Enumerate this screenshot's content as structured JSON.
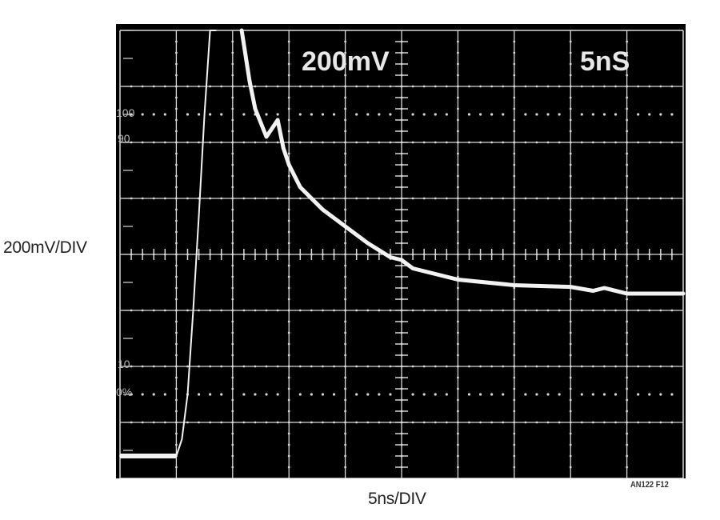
{
  "chart_data": {
    "type": "line",
    "title": "",
    "xlabel": "5ns/DIV",
    "ylabel": "200mV/DIV",
    "figure_id": "AN122 F12",
    "screen_annotations": {
      "volts_per_div": "200mV",
      "time_per_div": "5nS"
    },
    "graticule": {
      "x_divisions": 10,
      "y_divisions": 8,
      "grid": true,
      "markers": [
        "100",
        "90",
        "10",
        "0%"
      ]
    },
    "xlim": [
      0,
      50
    ],
    "x_unit": "ns",
    "y_unit": "divisions",
    "ylim": [
      0,
      8
    ],
    "series": [
      {
        "name": "Rising edge trace (thin)",
        "x": [
          0,
          5,
          5.5,
          6,
          6.5,
          7,
          7.5,
          8,
          8.5
        ],
        "values": [
          0.4,
          0.4,
          0.7,
          1.5,
          3.0,
          4.7,
          6.5,
          8.0,
          8.0
        ]
      },
      {
        "name": "Decay trace (thick)",
        "x": [
          10.8,
          11.5,
          12,
          13,
          14,
          14.5,
          15,
          16,
          18,
          20,
          22,
          24,
          25,
          26,
          30,
          35,
          40,
          42,
          43,
          45,
          50
        ],
        "values": [
          8.0,
          7.1,
          6.6,
          6.1,
          6.4,
          5.9,
          5.6,
          5.2,
          4.8,
          4.5,
          4.2,
          3.95,
          3.9,
          3.75,
          3.55,
          3.45,
          3.42,
          3.35,
          3.4,
          3.3,
          3.3
        ]
      }
    ]
  },
  "labels": {
    "y_axis": "200mV/DIV",
    "x_axis": "5ns/DIV",
    "figure_id": "AN122 F12",
    "scope_volts": "200mV",
    "scope_time": "5nS",
    "marker_100": "100",
    "marker_90": "90",
    "marker_10": "10",
    "marker_0": "0%"
  }
}
